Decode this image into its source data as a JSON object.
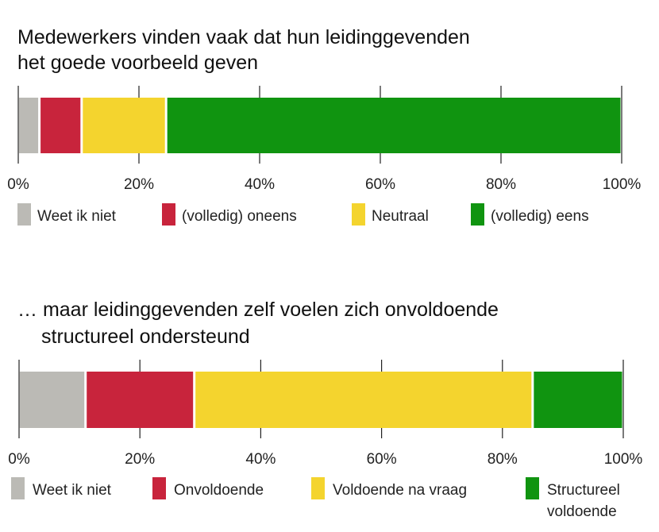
{
  "chart_data": [
    {
      "type": "bar",
      "orientation": "horizontal-stacked-100",
      "title_lines": [
        "Medewerkers vinden vaak dat hun leidinggevenden",
        "het goede voorbeeld geven"
      ],
      "categories": [
        "Weet ik niet",
        "(volledig) oneens",
        "Neutraal",
        "(volledig) eens"
      ],
      "values": [
        3.5,
        7,
        14,
        75.5
      ],
      "colors": [
        "#bbbab5",
        "#c8243c",
        "#f4d42e",
        "#109410"
      ],
      "xlim": [
        0,
        100
      ],
      "ticks": [
        "0%",
        "20%",
        "40%",
        "60%",
        "80%",
        "100%"
      ],
      "legend_position": "bottom"
    },
    {
      "type": "bar",
      "orientation": "horizontal-stacked-100",
      "title_lines": [
        "… maar leidinggevenden zelf voelen zich onvoldoende",
        "structureel ondersteund"
      ],
      "categories": [
        "Weet ik niet",
        "Onvoldoende",
        "Voldoende na vraag",
        "Structureel voldoende"
      ],
      "legend_lines": [
        [
          "Weet ik niet"
        ],
        [
          "Onvoldoende"
        ],
        [
          "Voldoende na vraag"
        ],
        [
          "Structureel",
          "voldoende"
        ]
      ],
      "values": [
        11,
        18,
        56,
        15
      ],
      "colors": [
        "#bbbab5",
        "#c8243c",
        "#f4d42e",
        "#109410"
      ],
      "xlim": [
        0,
        100
      ],
      "ticks": [
        "0%",
        "20%",
        "40%",
        "60%",
        "80%",
        "100%"
      ],
      "legend_position": "bottom"
    }
  ]
}
